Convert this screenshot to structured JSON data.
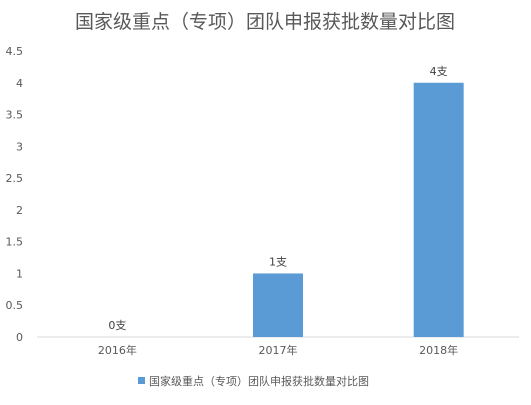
{
  "chart_data": {
    "type": "bar",
    "title": "国家级重点（专项）团队申报获批数量对比图",
    "categories": [
      "2016年",
      "2017年",
      "2018年"
    ],
    "series": [
      {
        "name": "国家级重点（专项）团队申报获批数量对比图",
        "values": [
          0,
          1,
          4
        ],
        "data_labels": [
          "0支",
          "1支",
          "4支"
        ],
        "color": "#5b9bd5"
      }
    ],
    "ylim": [
      0,
      4.5
    ],
    "yticks": [
      "0",
      "0.5",
      "1",
      "1.5",
      "2",
      "2.5",
      "3",
      "3.5",
      "4",
      "4.5"
    ],
    "grid": false,
    "legend": "bottom",
    "xlabel": "",
    "ylabel": ""
  }
}
